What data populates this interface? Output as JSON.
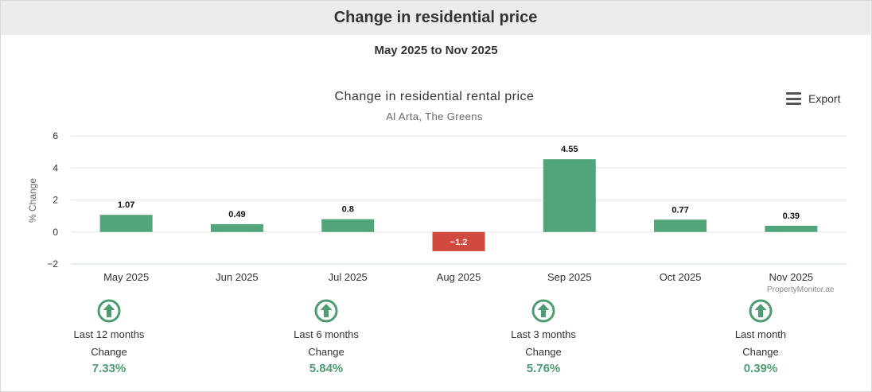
{
  "header": {
    "title": "Change in residential price"
  },
  "date_range": "May 2025 to Nov 2025",
  "export_label": "Export",
  "watermark": "PropertyMonitor.ae",
  "colors": {
    "positive": "#52a57b",
    "negative": "#d04a3e",
    "summary_value": "#4f9c73"
  },
  "chart_data": {
    "type": "bar",
    "title": "Change in residential rental price",
    "subtitle": "Al Arta, The Greens",
    "ylabel": "% Change",
    "xlabel": "",
    "ylim": [
      -2,
      6
    ],
    "yticks": [
      -2,
      0,
      2,
      4,
      6
    ],
    "ytick_labels": [
      "−2",
      "0",
      "2",
      "4",
      "6"
    ],
    "grid": true,
    "categories": [
      "May 2025",
      "Jun 2025",
      "Jul 2025",
      "Aug 2025",
      "Sep 2025",
      "Oct 2025",
      "Nov 2025"
    ],
    "values": [
      1.07,
      0.49,
      0.8,
      -1.2,
      4.55,
      0.77,
      0.39
    ],
    "value_labels": [
      "1.07",
      "0.49",
      "0.8",
      "−1.2",
      "4.55",
      "0.77",
      "0.39"
    ]
  },
  "summary": [
    {
      "period": "Last 12 months",
      "label": "Change",
      "value": "7.33%",
      "icon": "up-arrow-circle-icon"
    },
    {
      "period": "Last 6 months",
      "label": "Change",
      "value": "5.84%",
      "icon": "up-arrow-circle-icon"
    },
    {
      "period": "Last 3 months",
      "label": "Change",
      "value": "5.76%",
      "icon": "up-arrow-circle-icon"
    },
    {
      "period": "Last month",
      "label": "Change",
      "value": "0.39%",
      "icon": "up-arrow-circle-icon"
    }
  ]
}
